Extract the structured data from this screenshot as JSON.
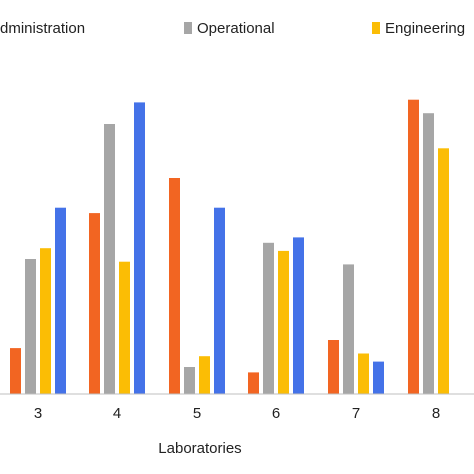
{
  "chart_data": {
    "type": "bar",
    "xlabel": "Laboratories",
    "ylabel": "",
    "categories": [
      "3",
      "4",
      "5",
      "6",
      "7",
      "8"
    ],
    "series": [
      {
        "name": "Administration",
        "color": "#f26522",
        "values": [
          17,
          67,
          80,
          8,
          20,
          109
        ]
      },
      {
        "name": "Operational",
        "color": "#a6a6a6",
        "values": [
          50,
          100,
          10,
          56,
          48,
          104
        ]
      },
      {
        "name": "Engineering",
        "color": "#fbbd05",
        "values": [
          54,
          49,
          14,
          53,
          15,
          91
        ]
      },
      {
        "name": "",
        "color": "#4472e8",
        "values": [
          69,
          108,
          69,
          58,
          12,
          null
        ]
      }
    ],
    "ylim": [
      0,
      120
    ],
    "grid": false,
    "legend_position": "top"
  }
}
